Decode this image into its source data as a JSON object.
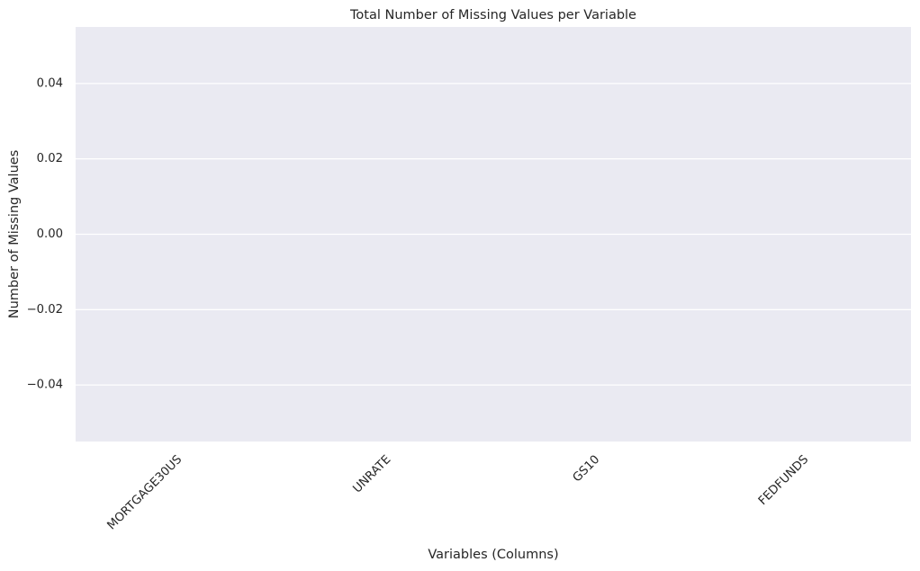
{
  "chart_data": {
    "type": "bar",
    "title": "Total Number of Missing Values per Variable",
    "xlabel": "Variables (Columns)",
    "ylabel": "Number of Missing Values",
    "categories": [
      "MORTGAGE30US",
      "UNRATE",
      "GS10",
      "FEDFUNDS"
    ],
    "values": [
      0,
      0,
      0,
      0
    ],
    "ylim": [
      -0.055,
      0.055
    ],
    "yticks": [
      0.04,
      0.02,
      0.0,
      -0.02,
      -0.04
    ],
    "ytick_labels": [
      "0.04",
      "0.02",
      "0.00",
      "−0.02",
      "−0.04"
    ],
    "x_tick_rotation": 45,
    "grid": true,
    "colors": {
      "plot_background": "#eaeaf2",
      "grid": "#ffffff",
      "text": "#262626",
      "bar": "#4c72b0"
    }
  }
}
